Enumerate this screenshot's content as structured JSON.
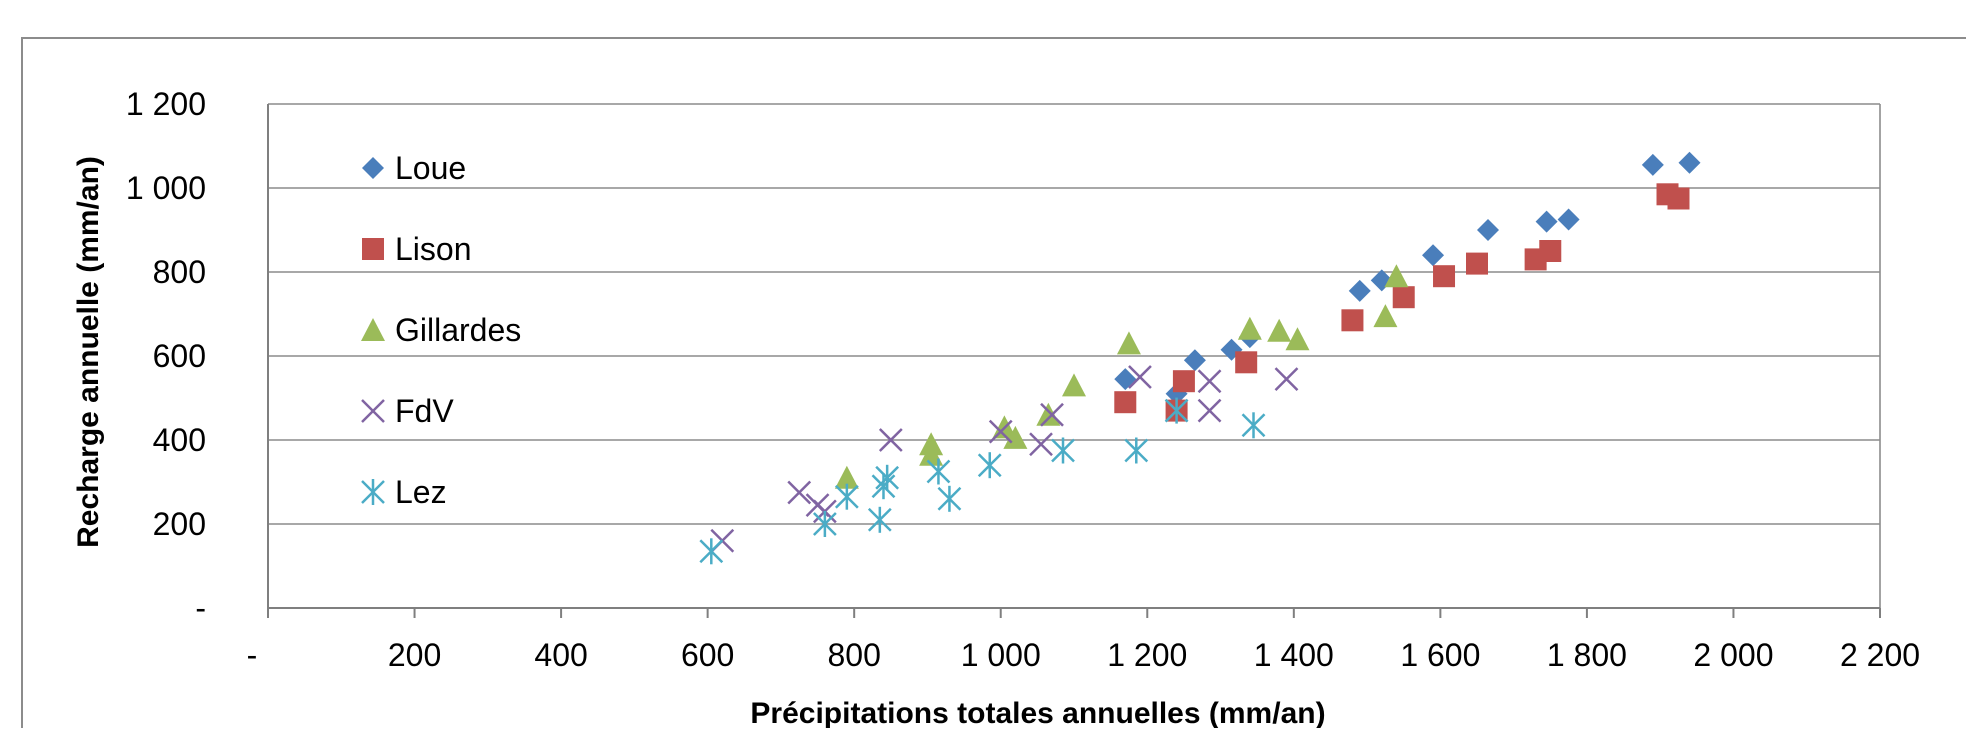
{
  "chart_data": {
    "type": "scatter",
    "title": "",
    "xlabel": "Précipitations totales annuelles (mm/an)",
    "ylabel": "Recharge annuelle (mm/an)",
    "xlim": [
      0,
      2200
    ],
    "ylim": [
      0,
      1200
    ],
    "grid": {
      "x": false,
      "y": true
    },
    "legend_position": "top-left",
    "x_ticks": [
      {
        "value": 0,
        "label": "-"
      },
      {
        "value": 200,
        "label": "200"
      },
      {
        "value": 400,
        "label": "400"
      },
      {
        "value": 600,
        "label": "600"
      },
      {
        "value": 800,
        "label": "800"
      },
      {
        "value": 1000,
        "label": "1 000"
      },
      {
        "value": 1200,
        "label": "1 200"
      },
      {
        "value": 1400,
        "label": "1 400"
      },
      {
        "value": 1600,
        "label": "1 600"
      },
      {
        "value": 1800,
        "label": "1 800"
      },
      {
        "value": 2000,
        "label": "2 000"
      },
      {
        "value": 2200,
        "label": "2 200"
      }
    ],
    "y_ticks": [
      {
        "value": 0,
        "label": "-"
      },
      {
        "value": 200,
        "label": "200"
      },
      {
        "value": 400,
        "label": "400"
      },
      {
        "value": 600,
        "label": "600"
      },
      {
        "value": 800,
        "label": "800"
      },
      {
        "value": 1000,
        "label": "1 000"
      },
      {
        "value": 1200,
        "label": "1 200"
      }
    ],
    "series": [
      {
        "name": "Loue",
        "marker": "diamond",
        "color": "#4a7ebb",
        "points": [
          [
            1170,
            545
          ],
          [
            1240,
            510
          ],
          [
            1265,
            590
          ],
          [
            1315,
            615
          ],
          [
            1340,
            645
          ],
          [
            1490,
            755
          ],
          [
            1520,
            780
          ],
          [
            1590,
            840
          ],
          [
            1665,
            900
          ],
          [
            1745,
            920
          ],
          [
            1775,
            925
          ],
          [
            1890,
            1055
          ],
          [
            1940,
            1060
          ]
        ]
      },
      {
        "name": "Lison",
        "marker": "square",
        "color": "#c0504d",
        "points": [
          [
            1170,
            490
          ],
          [
            1240,
            470
          ],
          [
            1250,
            540
          ],
          [
            1335,
            585
          ],
          [
            1480,
            685
          ],
          [
            1550,
            740
          ],
          [
            1605,
            790
          ],
          [
            1650,
            820
          ],
          [
            1730,
            830
          ],
          [
            1750,
            850
          ],
          [
            1910,
            985
          ],
          [
            1925,
            975
          ]
        ]
      },
      {
        "name": "Gillardes",
        "marker": "triangle",
        "color": "#9bbb59",
        "points": [
          [
            790,
            310
          ],
          [
            905,
            390
          ],
          [
            905,
            365
          ],
          [
            1005,
            430
          ],
          [
            1020,
            405
          ],
          [
            1065,
            460
          ],
          [
            1100,
            530
          ],
          [
            1175,
            630
          ],
          [
            1340,
            665
          ],
          [
            1380,
            660
          ],
          [
            1405,
            640
          ],
          [
            1525,
            695
          ],
          [
            1540,
            790
          ]
        ]
      },
      {
        "name": "FdV",
        "marker": "x",
        "color": "#8064a2",
        "points": [
          [
            620,
            160
          ],
          [
            725,
            275
          ],
          [
            750,
            245
          ],
          [
            760,
            230
          ],
          [
            850,
            400
          ],
          [
            1000,
            420
          ],
          [
            1055,
            390
          ],
          [
            1070,
            460
          ],
          [
            1190,
            550
          ],
          [
            1285,
            540
          ],
          [
            1285,
            470
          ],
          [
            1390,
            545
          ]
        ]
      },
      {
        "name": "Lez",
        "marker": "asterisk",
        "color": "#4bacc6",
        "points": [
          [
            605,
            135
          ],
          [
            760,
            200
          ],
          [
            790,
            265
          ],
          [
            835,
            210
          ],
          [
            840,
            290
          ],
          [
            845,
            310
          ],
          [
            915,
            325
          ],
          [
            930,
            260
          ],
          [
            985,
            340
          ],
          [
            1085,
            375
          ],
          [
            1185,
            375
          ],
          [
            1240,
            470
          ],
          [
            1345,
            435
          ]
        ]
      }
    ]
  }
}
